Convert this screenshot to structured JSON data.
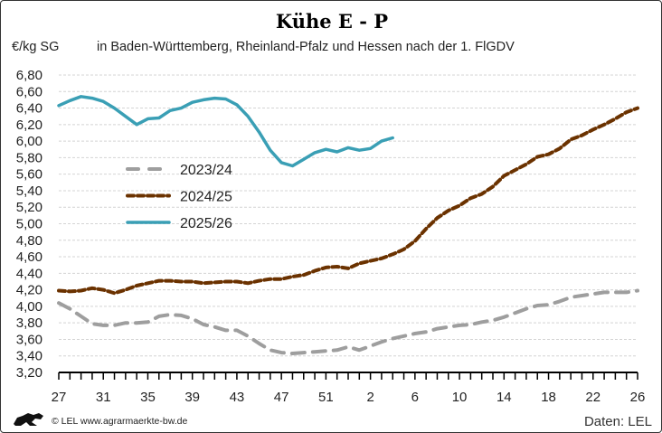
{
  "chart_data": {
    "type": "line",
    "title": "Kühe E - P",
    "ylabel": "€/kg SG",
    "subtitle": "in Baden-Württemberg, Rheinland-Pfalz und Hessen nach der 1. FlGDV",
    "x_categories": [
      27,
      28,
      29,
      30,
      31,
      32,
      33,
      34,
      35,
      36,
      37,
      38,
      39,
      40,
      41,
      42,
      43,
      44,
      45,
      46,
      47,
      48,
      49,
      50,
      51,
      52,
      53,
      1,
      2,
      3,
      4,
      5,
      6,
      7,
      8,
      9,
      10,
      11,
      12,
      13,
      14,
      15,
      16,
      17,
      18,
      19,
      20,
      21,
      22,
      23,
      24,
      25,
      26
    ],
    "x_tick_labels": [
      "27",
      "31",
      "35",
      "39",
      "43",
      "47",
      "51",
      "2",
      "6",
      "10",
      "14",
      "18",
      "22",
      "26"
    ],
    "y_tick_labels": [
      "3,20",
      "3,40",
      "3,60",
      "3,80",
      "4,00",
      "4,20",
      "4,40",
      "4,60",
      "4,80",
      "5,00",
      "5,20",
      "5,40",
      "5,60",
      "5,80",
      "6,00",
      "6,20",
      "6,40",
      "6,60",
      "6,80"
    ],
    "ylim": [
      3.2,
      6.8
    ],
    "grid": "horizontal dashed",
    "legend_position": "left-center",
    "series": [
      {
        "name": "2023/24",
        "color": "#9e9e9e",
        "style": "dashed",
        "values": [
          4.04,
          3.97,
          3.88,
          3.79,
          3.77,
          3.77,
          3.8,
          3.8,
          3.81,
          3.88,
          3.9,
          3.89,
          3.85,
          3.78,
          3.75,
          3.71,
          3.71,
          3.64,
          3.55,
          3.47,
          3.44,
          3.43,
          3.44,
          3.45,
          3.46,
          3.47,
          3.51,
          3.47,
          3.52,
          3.57,
          3.61,
          3.64,
          3.67,
          3.69,
          3.73,
          3.75,
          3.77,
          3.78,
          3.81,
          3.83,
          3.87,
          3.92,
          3.97,
          4.01,
          4.02,
          4.06,
          4.11,
          4.13,
          4.15,
          4.17,
          4.17,
          4.17,
          4.19
        ]
      },
      {
        "name": "2024/25",
        "color": "#6b3200",
        "style": "dotted",
        "values": [
          4.19,
          4.18,
          4.19,
          4.22,
          4.2,
          4.16,
          4.2,
          4.25,
          4.28,
          4.31,
          4.31,
          4.3,
          4.3,
          4.28,
          4.29,
          4.3,
          4.3,
          4.28,
          4.31,
          4.33,
          4.33,
          4.36,
          4.38,
          4.43,
          4.47,
          4.48,
          4.46,
          4.52,
          4.55,
          4.58,
          4.63,
          4.69,
          4.79,
          4.94,
          5.07,
          5.16,
          5.22,
          5.31,
          5.36,
          5.45,
          5.58,
          5.65,
          5.72,
          5.81,
          5.84,
          5.91,
          6.02,
          6.07,
          6.14,
          6.2,
          6.27,
          6.35,
          6.4
        ]
      },
      {
        "name": "2025/26",
        "color": "#3a9fb5",
        "style": "solid",
        "values": [
          6.43,
          6.49,
          6.54,
          6.52,
          6.48,
          6.4,
          6.3,
          6.2,
          6.27,
          6.28,
          6.37,
          6.4,
          6.47,
          6.5,
          6.52,
          6.51,
          6.44,
          6.3,
          6.11,
          5.89,
          5.74,
          5.7,
          5.78,
          5.86,
          5.9,
          5.87,
          5.92,
          5.89,
          5.91,
          6.0,
          6.04
        ]
      }
    ]
  },
  "footer": {
    "copyright": "© LEL www.agrarmaerkte-bw.de",
    "source": "Daten: LEL",
    "logo": "Baden-Württemberg lion logo"
  }
}
